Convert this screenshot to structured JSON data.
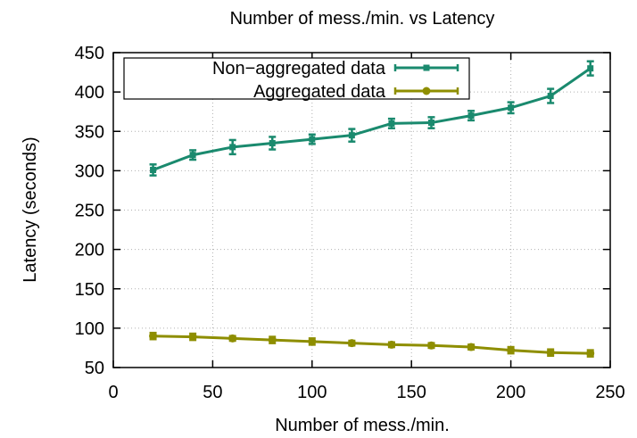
{
  "chart_data": {
    "type": "line",
    "title": "Number of mess./min. vs Latency",
    "xlabel": "Number of mess./min.",
    "ylabel": "Latency (seconds)",
    "xlim": [
      0,
      250
    ],
    "ylim": [
      50,
      450
    ],
    "xticks": [
      0,
      50,
      100,
      150,
      200,
      250
    ],
    "yticks": [
      50,
      100,
      150,
      200,
      250,
      300,
      350,
      400,
      450
    ],
    "grid": true,
    "legend_position": "top-left",
    "x": [
      20,
      40,
      60,
      80,
      100,
      120,
      140,
      160,
      180,
      200,
      220,
      240
    ],
    "series": [
      {
        "name": "Non−aggregated data",
        "color": "#1a8a6e",
        "marker": "square",
        "values": [
          301,
          320,
          330,
          335,
          340,
          345,
          360,
          361,
          370,
          380,
          395,
          430
        ],
        "errors": [
          7,
          6,
          9,
          8,
          6,
          8,
          6,
          7,
          6,
          7,
          9,
          9
        ]
      },
      {
        "name": "Aggregated data",
        "color": "#8e8e00",
        "marker": "circle",
        "values": [
          90,
          89,
          87,
          85,
          83,
          81,
          79,
          78,
          76,
          72,
          69,
          68
        ],
        "errors": [
          4,
          4,
          3,
          4,
          4,
          3,
          3,
          3,
          3,
          4,
          4,
          4
        ]
      }
    ]
  }
}
